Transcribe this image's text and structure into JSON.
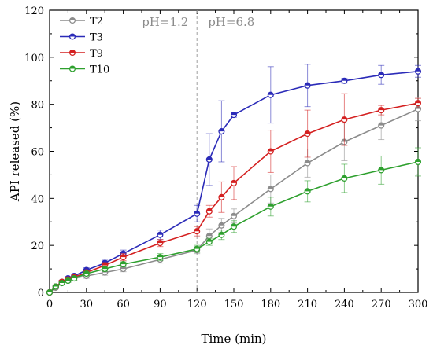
{
  "chart_data": {
    "type": "line",
    "xlabel": "Time (min)",
    "ylabel": "API released (%)",
    "xlim": [
      0,
      300
    ],
    "ylim": [
      0,
      120
    ],
    "xticks": [
      0,
      30,
      60,
      90,
      120,
      150,
      180,
      210,
      240,
      270,
      300
    ],
    "yticks": [
      0,
      20,
      40,
      60,
      80,
      100,
      120
    ],
    "grid": false,
    "legend_position": "top-left",
    "annotations": [
      {
        "text": "pH=1.2"
      },
      {
        "text": "pH=6.8"
      }
    ],
    "divider_x": 120,
    "x": [
      0,
      5,
      10,
      15,
      20,
      30,
      45,
      60,
      90,
      120,
      130,
      140,
      150,
      180,
      210,
      240,
      270,
      300
    ],
    "series": [
      {
        "name": "T2",
        "color": "#8c8c8c",
        "values": [
          0,
          2,
          4,
          5,
          6,
          7,
          8.5,
          10,
          14,
          18,
          24,
          28.5,
          32.5,
          44,
          55,
          64,
          71,
          78
        ],
        "errors": [
          0,
          0.5,
          0.6,
          0.7,
          0.8,
          1,
          1.2,
          1.2,
          1.5,
          1.5,
          3,
          3,
          3,
          6,
          6,
          8,
          6,
          5
        ]
      },
      {
        "name": "T3",
        "color": "#2b2bb8",
        "values": [
          0,
          2.5,
          4.5,
          6,
          7,
          9.5,
          12.5,
          16.5,
          24.5,
          33.5,
          56.5,
          68.5,
          75.5,
          84,
          88,
          90,
          92.5,
          94
        ],
        "errors": [
          0,
          0.5,
          0.6,
          0.7,
          0.8,
          1,
          1.2,
          1.5,
          2,
          3.5,
          11,
          13,
          1,
          12,
          9,
          1,
          4,
          2.5
        ]
      },
      {
        "name": "T9",
        "color": "#d42020",
        "values": [
          0,
          2.5,
          4.5,
          5.5,
          6.5,
          8.5,
          11.5,
          15,
          21,
          26,
          34.5,
          40.5,
          46.5,
          60,
          67.5,
          73.5,
          77.5,
          80.5
        ],
        "errors": [
          0,
          0.5,
          0.6,
          0.7,
          0.8,
          1,
          1.2,
          1.5,
          1.5,
          2,
          2.5,
          6.5,
          7,
          9,
          10,
          11,
          2,
          2
        ]
      },
      {
        "name": "T10",
        "color": "#2ea02e",
        "values": [
          0,
          2.5,
          4,
          5,
          6,
          8,
          10,
          12,
          15,
          18.5,
          21.5,
          24.5,
          28,
          36.5,
          43,
          48.5,
          52,
          55.5
        ],
        "errors": [
          0,
          0.5,
          0.6,
          0.7,
          0.8,
          1,
          1,
          1,
          1.5,
          1.5,
          1.5,
          2,
          2.5,
          4,
          4.5,
          6,
          6,
          6
        ]
      }
    ]
  }
}
